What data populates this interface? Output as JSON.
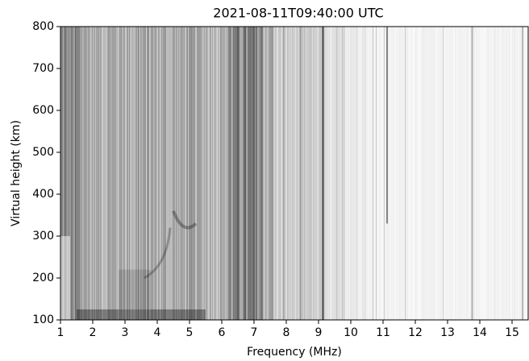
{
  "chart_data": {
    "type": "ionogram",
    "title": "2021-08-11T09:40:00 UTC",
    "x_label": "Frequency (MHz)",
    "y_label": "Virtual height (km)",
    "xlim": [
      1,
      15.5
    ],
    "ylim": [
      100,
      800
    ],
    "xticks": [
      1,
      2,
      3,
      4,
      5,
      6,
      7,
      8,
      9,
      10,
      11,
      12,
      13,
      14,
      15
    ],
    "yticks": [
      100,
      200,
      300,
      400,
      500,
      600,
      700,
      800
    ],
    "colormap": "gray"
  }
}
